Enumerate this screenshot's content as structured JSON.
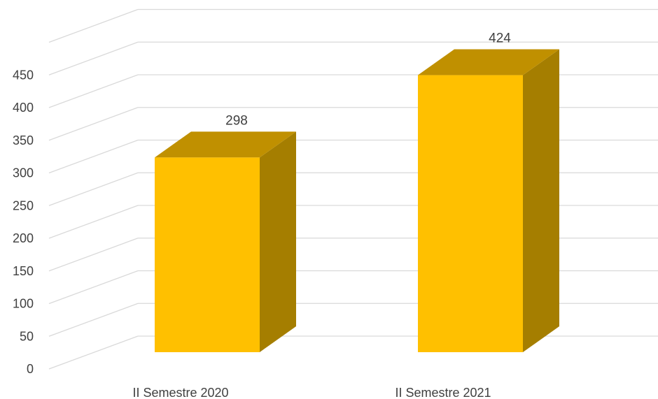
{
  "chart_data": {
    "type": "bar",
    "style": "3d-column",
    "categories": [
      "II Semestre 2020",
      "II Semestre 2021"
    ],
    "values": [
      298,
      424
    ],
    "data_labels": [
      "298",
      "424"
    ],
    "ylim": [
      0,
      500
    ],
    "yticks": [
      "0",
      "50",
      "100",
      "150",
      "200",
      "250",
      "300",
      "350",
      "400",
      "450"
    ],
    "grid": true,
    "legend": "none",
    "colors": {
      "front": "#FFC000",
      "top": "#C09000",
      "side": "#A57E00",
      "grid": "#D9D9D9"
    }
  }
}
